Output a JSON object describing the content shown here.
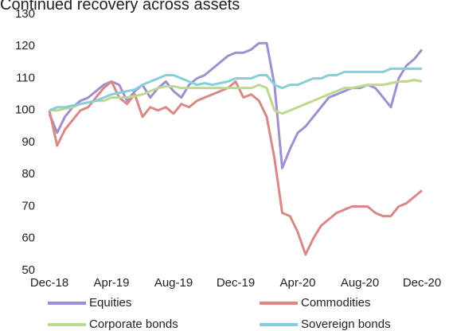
{
  "chart_data": {
    "type": "line",
    "title": "Continued recovery across assets",
    "categories": [
      "Dec-18",
      null,
      null,
      null,
      null,
      null,
      null,
      null,
      "Apr-19",
      null,
      null,
      null,
      null,
      null,
      null,
      null,
      "Aug-19",
      null,
      null,
      null,
      null,
      null,
      null,
      null,
      "Dec-19",
      null,
      null,
      null,
      null,
      null,
      null,
      null,
      "Apr-20",
      null,
      null,
      null,
      null,
      null,
      null,
      null,
      "Aug-20",
      null,
      null,
      null,
      null,
      null,
      null,
      null,
      "Dec-20"
    ],
    "series": [
      {
        "name": "Equities",
        "color": "#a08fce",
        "values": [
          99,
          93,
          98,
          101,
          103,
          104,
          106,
          108,
          109,
          108,
          103,
          106,
          108,
          104,
          107,
          109,
          106,
          104,
          108,
          110,
          111,
          113,
          115,
          117,
          118,
          118,
          119,
          121,
          121,
          108,
          82,
          88,
          93,
          95,
          98,
          101,
          104,
          105,
          106,
          107,
          107,
          108,
          107,
          104,
          101,
          110,
          114,
          116,
          119
        ]
      },
      {
        "name": "Commodities",
        "color": "#d98985",
        "values": [
          100,
          89,
          94,
          97,
          100,
          101,
          104,
          107,
          109,
          104,
          102,
          105,
          98,
          101,
          100,
          101,
          99,
          102,
          101,
          103,
          104,
          105,
          106,
          107,
          109,
          104,
          105,
          103,
          98,
          85,
          68,
          67,
          62,
          55,
          60,
          64,
          66,
          68,
          69,
          70,
          70,
          70,
          68,
          67,
          67,
          70,
          71,
          73,
          75
        ]
      },
      {
        "name": "Corporate bonds",
        "color": "#bcd98f",
        "values": [
          100,
          100,
          100.5,
          101,
          102,
          102.5,
          103,
          103,
          104,
          104,
          104,
          104.5,
          105,
          106,
          107,
          107.5,
          107.5,
          107,
          107,
          107,
          107,
          107,
          107,
          107,
          107,
          107,
          107,
          108,
          107,
          100,
          99,
          100,
          101,
          102,
          103,
          104,
          105,
          106,
          107,
          107,
          107.5,
          108,
          108,
          108,
          108.5,
          109,
          109,
          109.5,
          109
        ]
      },
      {
        "name": "Sovereign bonds",
        "color": "#86cfd9",
        "values": [
          100,
          101,
          101,
          101.5,
          102,
          102.5,
          103,
          104,
          105,
          105.5,
          106,
          106.5,
          108,
          109,
          110,
          111,
          111,
          110,
          109,
          108,
          108.5,
          108,
          108.5,
          109,
          110,
          110,
          110,
          111,
          111,
          108,
          107,
          108,
          108,
          109,
          110,
          110,
          111,
          111,
          112,
          112,
          112,
          112,
          112,
          112,
          113,
          113,
          113,
          113,
          113
        ]
      }
    ],
    "ylim": [
      50,
      130
    ],
    "yticks": [
      50,
      60,
      70,
      80,
      90,
      100,
      110,
      120,
      130
    ],
    "grid": false
  }
}
